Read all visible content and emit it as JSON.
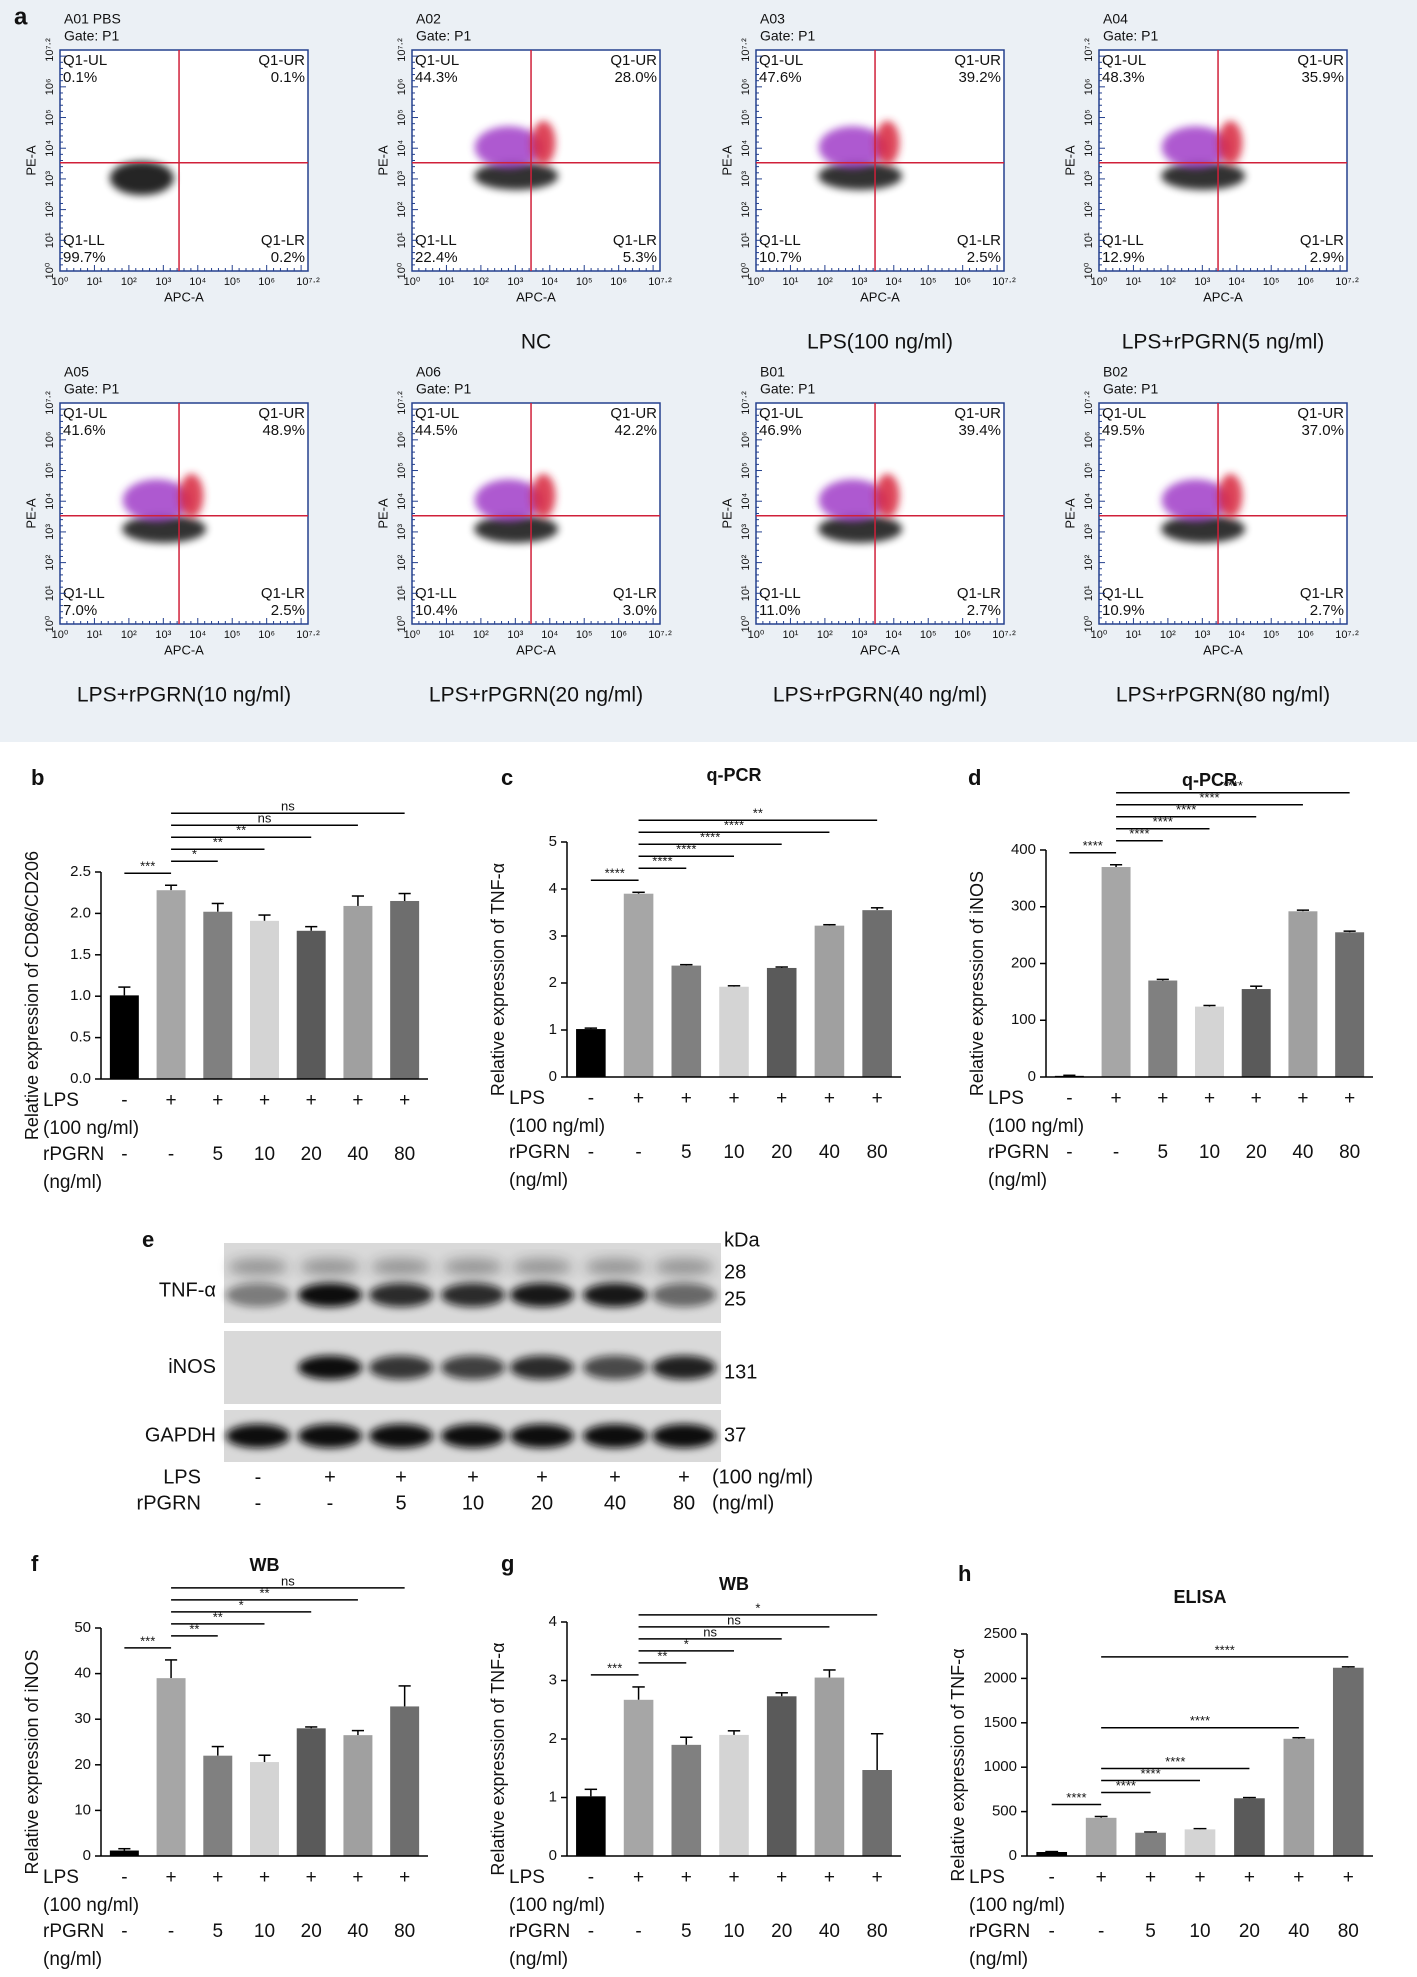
{
  "panel_a": {
    "letter": "a",
    "gate": "Gate: P1",
    "x_axis_title": "APC-A",
    "y_axis_title": "PE-A",
    "axis_ticks": [
      "10⁰",
      "10¹",
      "10²",
      "10³",
      "10⁴",
      "10⁵",
      "10⁶",
      "10⁷·²"
    ],
    "quadrant_names": {
      "ul": "Q1-UL",
      "ur": "Q1-UR",
      "ll": "Q1-LL",
      "lr": "Q1-LR"
    },
    "plots": [
      {
        "sample": "A01 PBS",
        "ul": "0.1%",
        "ur": "0.1%",
        "ll": "99.7%",
        "lr": "0.2%"
      },
      {
        "sample": "A02",
        "ul": "44.3%",
        "ur": "28.0%",
        "ll": "22.4%",
        "lr": "5.3%",
        "caption": "NC"
      },
      {
        "sample": "A03",
        "ul": "47.6%",
        "ur": "39.2%",
        "ll": "10.7%",
        "lr": "2.5%",
        "caption": "LPS(100 ng/ml)"
      },
      {
        "sample": "A04",
        "ul": "48.3%",
        "ur": "35.9%",
        "ll": "12.9%",
        "lr": "2.9%",
        "caption": "LPS+rPGRN(5 ng/ml)"
      },
      {
        "sample": "A05",
        "ul": "41.6%",
        "ur": "48.9%",
        "ll": "7.0%",
        "lr": "2.5%",
        "caption": "LPS+rPGRN(10 ng/ml)"
      },
      {
        "sample": "A06",
        "ul": "44.5%",
        "ur": "42.2%",
        "ll": "10.4%",
        "lr": "3.0%",
        "caption": "LPS+rPGRN(20 ng/ml)"
      },
      {
        "sample": "B01",
        "ul": "46.9%",
        "ur": "39.4%",
        "ll": "11.0%",
        "lr": "2.7%",
        "caption": "LPS+rPGRN(40 ng/ml)"
      },
      {
        "sample": "B02",
        "ul": "49.5%",
        "ur": "37.0%",
        "ll": "10.9%",
        "lr": "2.7%",
        "caption": "LPS+rPGRN(80 ng/ml)"
      }
    ]
  },
  "blot": {
    "letter": "e",
    "unit": "kDa",
    "rows": [
      {
        "name": "TNF-α",
        "markers": [
          "28",
          "25"
        ]
      },
      {
        "name": "iNOS",
        "markers": [
          "131"
        ]
      },
      {
        "name": "GAPDH",
        "markers": [
          "37"
        ]
      }
    ],
    "lps_label": "LPS",
    "lps": [
      "-",
      "+",
      "+",
      "+",
      "+",
      "+",
      "+"
    ],
    "lps_unit": "(100 ng/ml)",
    "rpgrn_label": "rPGRN",
    "rpgrn": [
      "-",
      "-",
      "5",
      "10",
      "20",
      "40",
      "80"
    ],
    "rpgrn_unit": "(ng/ml)"
  },
  "chart_data": [
    {
      "type": "bar",
      "letter": "b",
      "ylabel": "Relative expression of CD86/CD206",
      "lps_label": "LPS",
      "lps": [
        "-",
        "+",
        "+",
        "+",
        "+",
        "+",
        "+"
      ],
      "lps_unit": "(100 ng/ml)",
      "rpgrn_label": "rPGRN",
      "categories": [
        "-",
        "-",
        "5",
        "10",
        "20",
        "40",
        "80"
      ],
      "rpgrn_unit": "(ng/ml)",
      "values": [
        1.01,
        2.28,
        2.02,
        1.91,
        1.79,
        2.09,
        2.15
      ],
      "errors": [
        0.1,
        0.06,
        0.1,
        0.07,
        0.05,
        0.12,
        0.09
      ],
      "colors": [
        "#000000",
        "#a6a6a6",
        "#808080",
        "#d4d4d4",
        "#5a5a5a",
        "#a0a0a0",
        "#6e6e6e"
      ],
      "ylim": [
        0,
        2.5
      ],
      "yticks": [
        {
          "value": 0,
          "label": "0.0"
        },
        0.5,
        {
          "value": 1,
          "label": "1.0"
        },
        1.5,
        {
          "value": 2,
          "label": "2.0"
        },
        2.5
      ],
      "comparisons": [
        {
          "pair": [
            0,
            1
          ],
          "label": "***"
        },
        {
          "pair": [
            1,
            2
          ],
          "label": "*"
        },
        {
          "pair": [
            1,
            3
          ],
          "label": "**"
        },
        {
          "pair": [
            1,
            4
          ],
          "label": "**"
        },
        {
          "pair": [
            1,
            5
          ],
          "label": "ns"
        },
        {
          "pair": [
            1,
            6
          ],
          "label": "ns"
        }
      ]
    },
    {
      "type": "bar",
      "letter": "c",
      "title": "q-PCR",
      "ylabel": "Relative expression of TNF-α",
      "lps_label": "LPS",
      "lps": [
        "-",
        "+",
        "+",
        "+",
        "+",
        "+",
        "+"
      ],
      "lps_unit": "(100 ng/ml)",
      "rpgrn_label": "rPGRN",
      "categories": [
        "-",
        "-",
        "5",
        "10",
        "20",
        "40",
        "80"
      ],
      "rpgrn_unit": "(ng/ml)",
      "values": [
        1.02,
        3.9,
        2.37,
        1.92,
        2.32,
        3.22,
        3.55
      ],
      "errors": [
        0.02,
        0.03,
        0.02,
        0.02,
        0.02,
        0.02,
        0.05
      ],
      "colors": [
        "#000000",
        "#a6a6a6",
        "#808080",
        "#d4d4d4",
        "#5a5a5a",
        "#a0a0a0",
        "#6e6e6e"
      ],
      "ylim": [
        0,
        5
      ],
      "yticks": [
        0,
        1,
        2,
        3,
        4,
        5
      ],
      "comparisons": [
        {
          "pair": [
            0,
            1
          ],
          "label": "****"
        },
        {
          "pair": [
            1,
            2
          ],
          "label": "****"
        },
        {
          "pair": [
            1,
            3
          ],
          "label": "****"
        },
        {
          "pair": [
            1,
            4
          ],
          "label": "****"
        },
        {
          "pair": [
            1,
            5
          ],
          "label": "****"
        },
        {
          "pair": [
            1,
            6
          ],
          "label": "**"
        }
      ]
    },
    {
      "type": "bar",
      "letter": "d",
      "title": "q-PCR",
      "ylabel": "Relative expression of iNOS",
      "lps_label": "LPS",
      "lps": [
        "-",
        "+",
        "+",
        "+",
        "+",
        "+",
        "+"
      ],
      "lps_unit": "(100 ng/ml)",
      "rpgrn_label": "rPGRN",
      "categories": [
        "-",
        "-",
        "5",
        "10",
        "20",
        "40",
        "80"
      ],
      "rpgrn_unit": "(ng/ml)",
      "values": [
        2,
        370,
        170,
        124,
        155,
        292,
        255
      ],
      "errors": [
        1,
        4,
        2,
        2,
        5,
        2,
        2
      ],
      "colors": [
        "#000000",
        "#a6a6a6",
        "#808080",
        "#d4d4d4",
        "#5a5a5a",
        "#a0a0a0",
        "#6e6e6e"
      ],
      "ylim": [
        0,
        400
      ],
      "yticks": [
        0,
        100,
        200,
        300,
        400
      ],
      "comparisons": [
        {
          "pair": [
            0,
            1
          ],
          "label": "****"
        },
        {
          "pair": [
            1,
            2
          ],
          "label": "****"
        },
        {
          "pair": [
            1,
            3
          ],
          "label": "****"
        },
        {
          "pair": [
            1,
            4
          ],
          "label": "****"
        },
        {
          "pair": [
            1,
            5
          ],
          "label": "****"
        },
        {
          "pair": [
            1,
            6
          ],
          "label": "****"
        }
      ]
    },
    {
      "type": "bar",
      "letter": "f",
      "title": "WB",
      "ylabel": "Relative expression of iNOS",
      "lps_label": "LPS",
      "lps": [
        "-",
        "+",
        "+",
        "+",
        "+",
        "+",
        "+"
      ],
      "lps_unit": "(100 ng/ml)",
      "rpgrn_label": "rPGRN",
      "categories": [
        "-",
        "-",
        "5",
        "10",
        "20",
        "40",
        "80"
      ],
      "rpgrn_unit": "(ng/ml)",
      "values": [
        1.2,
        39,
        22,
        20.6,
        28,
        26.5,
        32.8
      ],
      "errors": [
        0.4,
        4,
        2,
        1.5,
        0.3,
        1,
        4.5
      ],
      "colors": [
        "#000000",
        "#a6a6a6",
        "#808080",
        "#d4d4d4",
        "#5a5a5a",
        "#a0a0a0",
        "#6e6e6e"
      ],
      "ylim": [
        0,
        50
      ],
      "yticks": [
        0,
        10,
        20,
        30,
        40,
        50
      ],
      "comparisons": [
        {
          "pair": [
            0,
            1
          ],
          "label": "***"
        },
        {
          "pair": [
            1,
            2
          ],
          "label": "**"
        },
        {
          "pair": [
            1,
            3
          ],
          "label": "**"
        },
        {
          "pair": [
            1,
            4
          ],
          "label": "*"
        },
        {
          "pair": [
            1,
            5
          ],
          "label": "**"
        },
        {
          "pair": [
            1,
            6
          ],
          "label": "ns"
        }
      ]
    },
    {
      "type": "bar",
      "letter": "g",
      "title": "WB",
      "ylabel": "Relative expression of TNF-α",
      "lps_label": "LPS",
      "lps": [
        "-",
        "+",
        "+",
        "+",
        "+",
        "+",
        "+"
      ],
      "lps_unit": "(100 ng/ml)",
      "rpgrn_label": "rPGRN",
      "categories": [
        "-",
        "-",
        "5",
        "10",
        "20",
        "40",
        "80"
      ],
      "rpgrn_unit": "(ng/ml)",
      "values": [
        1.02,
        2.67,
        1.9,
        2.07,
        2.73,
        3.05,
        1.47
      ],
      "errors": [
        0.12,
        0.22,
        0.13,
        0.07,
        0.06,
        0.13,
        0.62
      ],
      "colors": [
        "#000000",
        "#a6a6a6",
        "#808080",
        "#d4d4d4",
        "#5a5a5a",
        "#a0a0a0",
        "#6e6e6e"
      ],
      "ylim": [
        0,
        4
      ],
      "yticks": [
        0,
        1,
        2,
        3,
        4
      ],
      "comparisons": [
        {
          "pair": [
            0,
            1
          ],
          "label": "***"
        },
        {
          "pair": [
            1,
            2
          ],
          "label": "**"
        },
        {
          "pair": [
            1,
            3
          ],
          "label": "*"
        },
        {
          "pair": [
            1,
            4
          ],
          "label": "ns"
        },
        {
          "pair": [
            1,
            5
          ],
          "label": "ns"
        },
        {
          "pair": [
            1,
            6
          ],
          "label": "*"
        }
      ]
    },
    {
      "type": "bar",
      "letter": "h",
      "title": "ELISA",
      "ylabel": "Relative expression of TNF-α",
      "lps_label": "LPS",
      "lps": [
        "-",
        "+",
        "+",
        "+",
        "+",
        "+",
        "+"
      ],
      "lps_unit": "(100 ng/ml)",
      "rpgrn_label": "rPGRN",
      "categories": [
        "-",
        "-",
        "5",
        "10",
        "20",
        "40",
        "80"
      ],
      "rpgrn_unit": "(ng/ml)",
      "values": [
        45,
        430,
        262,
        300,
        650,
        1320,
        2120
      ],
      "errors": [
        5,
        15,
        8,
        8,
        8,
        12,
        10
      ],
      "colors": [
        "#000000",
        "#a6a6a6",
        "#808080",
        "#d4d4d4",
        "#5a5a5a",
        "#a0a0a0",
        "#6e6e6e"
      ],
      "ylim": [
        0,
        2500
      ],
      "yticks": [
        0,
        500,
        1000,
        1500,
        2000,
        2500
      ],
      "comparisons": [
        {
          "pair": [
            0,
            1
          ],
          "label": "****"
        },
        {
          "pair": [
            1,
            2
          ],
          "label": "****"
        },
        {
          "pair": [
            1,
            3
          ],
          "label": "****"
        },
        {
          "pair": [
            1,
            4
          ],
          "label": "****"
        },
        {
          "pair": [
            1,
            5
          ],
          "label": "****"
        },
        {
          "pair": [
            1,
            6
          ],
          "label": "****"
        }
      ]
    }
  ]
}
